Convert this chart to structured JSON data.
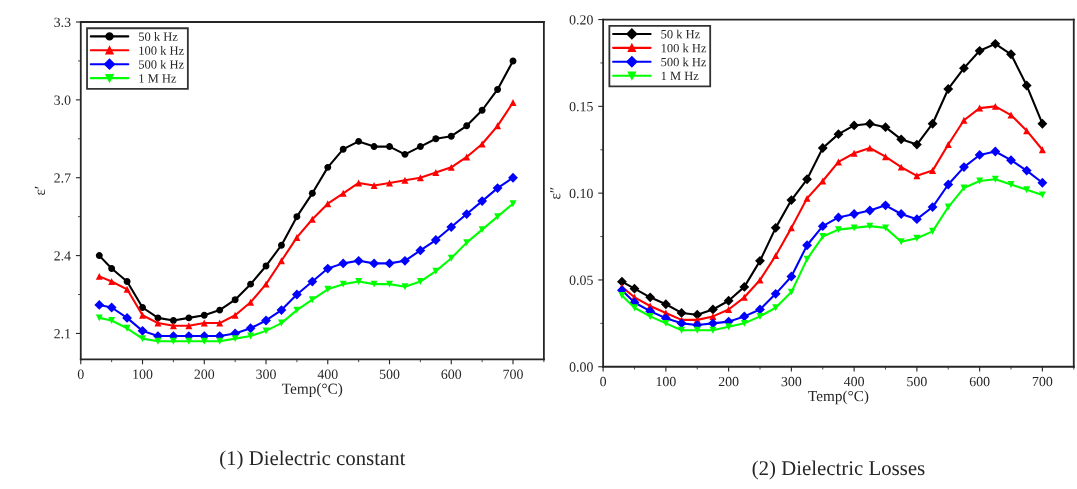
{
  "chart_data": [
    {
      "type": "line",
      "title": "(1) Dielectric constant",
      "xlabel": "Temp(°C)",
      "ylabel": "ε′",
      "legend": "top left",
      "grid": false,
      "x": [
        30,
        50,
        75,
        100,
        125,
        150,
        175,
        200,
        225,
        250,
        275,
        300,
        325,
        350,
        375,
        400,
        425,
        450,
        475,
        500,
        525,
        550,
        575,
        600,
        625,
        650,
        675,
        700
      ],
      "xlim": [
        0,
        750
      ],
      "xticks": [
        0,
        100,
        200,
        300,
        400,
        500,
        600,
        700
      ],
      "ylim": [
        2.0,
        3.3
      ],
      "yticks": [
        2.1,
        2.4,
        2.7,
        {
          "value": 3,
          "label": "3.0"
        },
        3.3
      ],
      "series": [
        {
          "name": "50 k Hz",
          "color": "#000000",
          "marker": "circle",
          "values": [
            2.4,
            2.35,
            2.3,
            2.2,
            2.16,
            2.15,
            2.16,
            2.17,
            2.19,
            2.23,
            2.29,
            2.36,
            2.44,
            2.55,
            2.64,
            2.74,
            2.81,
            2.84,
            2.82,
            2.82,
            2.79,
            2.82,
            2.85,
            2.86,
            2.9,
            2.96,
            3.04,
            3.15
          ]
        },
        {
          "name": "100 k Hz",
          "color": "#ff0000",
          "marker": "triangle",
          "values": [
            2.32,
            2.3,
            2.27,
            2.17,
            2.14,
            2.13,
            2.13,
            2.14,
            2.14,
            2.17,
            2.22,
            2.29,
            2.38,
            2.47,
            2.54,
            2.6,
            2.64,
            2.68,
            2.67,
            2.68,
            2.69,
            2.7,
            2.72,
            2.74,
            2.78,
            2.83,
            2.9,
            2.99
          ]
        },
        {
          "name": "500 k Hz",
          "color": "#0000ff",
          "marker": "diamond",
          "values": [
            2.21,
            2.2,
            2.16,
            2.11,
            2.09,
            2.09,
            2.09,
            2.09,
            2.09,
            2.1,
            2.12,
            2.15,
            2.19,
            2.25,
            2.3,
            2.35,
            2.37,
            2.38,
            2.37,
            2.37,
            2.38,
            2.42,
            2.46,
            2.51,
            2.56,
            2.61,
            2.66,
            2.7
          ]
        },
        {
          "name": "1 M Hz",
          "color": "#00ff00",
          "marker": "triangle_down",
          "values": [
            2.16,
            2.15,
            2.12,
            2.08,
            2.07,
            2.07,
            2.07,
            2.07,
            2.07,
            2.08,
            2.09,
            2.11,
            2.14,
            2.19,
            2.23,
            2.27,
            2.29,
            2.3,
            2.29,
            2.29,
            2.28,
            2.3,
            2.34,
            2.39,
            2.45,
            2.5,
            2.55,
            2.6
          ]
        }
      ]
    },
    {
      "type": "line",
      "title": "(2) Dielectric Losses",
      "xlabel": "Temp(°C)",
      "ylabel": "ε″",
      "legend": "top left",
      "grid": false,
      "x": [
        30,
        50,
        75,
        100,
        125,
        150,
        175,
        200,
        225,
        250,
        275,
        300,
        325,
        350,
        375,
        400,
        425,
        450,
        475,
        500,
        525,
        550,
        575,
        600,
        625,
        650,
        675,
        700
      ],
      "xlim": [
        0,
        750
      ],
      "xticks": [
        0,
        100,
        200,
        300,
        400,
        500,
        600,
        700
      ],
      "ylim": [
        0.0,
        0.2
      ],
      "yticks": [
        {
          "value": 0,
          "label": "0.00"
        },
        {
          "value": 0.05,
          "label": "0.05"
        },
        {
          "value": 0.1,
          "label": "0.10"
        },
        {
          "value": 0.15,
          "label": "0.15"
        },
        {
          "value": 0.2,
          "label": "0.20"
        }
      ],
      "series": [
        {
          "name": "50 k Hz",
          "color": "#000000",
          "marker": "diamond",
          "values": [
            0.049,
            0.045,
            0.04,
            0.036,
            0.031,
            0.03,
            0.033,
            0.038,
            0.046,
            0.061,
            0.08,
            0.096,
            0.108,
            0.126,
            0.134,
            0.139,
            0.14,
            0.138,
            0.131,
            0.128,
            0.14,
            0.16,
            0.172,
            0.182,
            0.186,
            0.18,
            0.162,
            0.14
          ]
        },
        {
          "name": "100 k Hz",
          "color": "#ff0000",
          "marker": "triangle",
          "values": [
            0.046,
            0.04,
            0.035,
            0.031,
            0.027,
            0.027,
            0.029,
            0.033,
            0.04,
            0.05,
            0.064,
            0.08,
            0.097,
            0.107,
            0.118,
            0.123,
            0.126,
            0.121,
            0.115,
            0.11,
            0.113,
            0.128,
            0.142,
            0.149,
            0.15,
            0.145,
            0.136,
            0.125
          ]
        },
        {
          "name": "500 k Hz",
          "color": "#0000ff",
          "marker": "diamond",
          "values": [
            0.044,
            0.037,
            0.032,
            0.028,
            0.025,
            0.024,
            0.025,
            0.026,
            0.029,
            0.033,
            0.042,
            0.052,
            0.07,
            0.081,
            0.086,
            0.088,
            0.09,
            0.093,
            0.088,
            0.085,
            0.092,
            0.105,
            0.115,
            0.122,
            0.124,
            0.119,
            0.113,
            0.106
          ]
        },
        {
          "name": "1 M Hz",
          "color": "#00ff00",
          "marker": "triangle_down",
          "values": [
            0.041,
            0.034,
            0.029,
            0.025,
            0.021,
            0.021,
            0.021,
            0.023,
            0.025,
            0.029,
            0.034,
            0.043,
            0.062,
            0.075,
            0.079,
            0.08,
            0.081,
            0.08,
            0.072,
            0.074,
            0.078,
            0.092,
            0.103,
            0.107,
            0.108,
            0.105,
            0.102,
            0.099
          ]
        }
      ]
    }
  ]
}
